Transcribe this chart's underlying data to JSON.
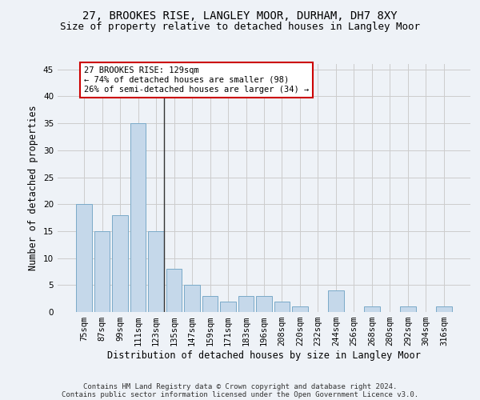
{
  "title1": "27, BROOKES RISE, LANGLEY MOOR, DURHAM, DH7 8XY",
  "title2": "Size of property relative to detached houses in Langley Moor",
  "xlabel": "Distribution of detached houses by size in Langley Moor",
  "ylabel": "Number of detached properties",
  "categories": [
    "75sqm",
    "87sqm",
    "99sqm",
    "111sqm",
    "123sqm",
    "135sqm",
    "147sqm",
    "159sqm",
    "171sqm",
    "183sqm",
    "196sqm",
    "208sqm",
    "220sqm",
    "232sqm",
    "244sqm",
    "256sqm",
    "268sqm",
    "280sqm",
    "292sqm",
    "304sqm",
    "316sqm"
  ],
  "values": [
    20,
    15,
    18,
    35,
    15,
    8,
    5,
    3,
    2,
    3,
    3,
    2,
    1,
    0,
    4,
    0,
    1,
    0,
    1,
    0,
    1
  ],
  "bar_color": "#c5d8ea",
  "bar_edge_color": "#7aaac8",
  "highlight_index": 4,
  "highlight_line_color": "#333333",
  "annotation_text": "27 BROOKES RISE: 129sqm\n← 74% of detached houses are smaller (98)\n26% of semi-detached houses are larger (34) →",
  "annotation_box_color": "#ffffff",
  "annotation_box_edge": "#cc0000",
  "ylim": [
    0,
    46
  ],
  "yticks": [
    0,
    5,
    10,
    15,
    20,
    25,
    30,
    35,
    40,
    45
  ],
  "background_color": "#eef2f7",
  "footer1": "Contains HM Land Registry data © Crown copyright and database right 2024.",
  "footer2": "Contains public sector information licensed under the Open Government Licence v3.0.",
  "title1_fontsize": 10,
  "title2_fontsize": 9,
  "axis_label_fontsize": 8.5,
  "tick_fontsize": 7.5,
  "footer_fontsize": 6.5
}
